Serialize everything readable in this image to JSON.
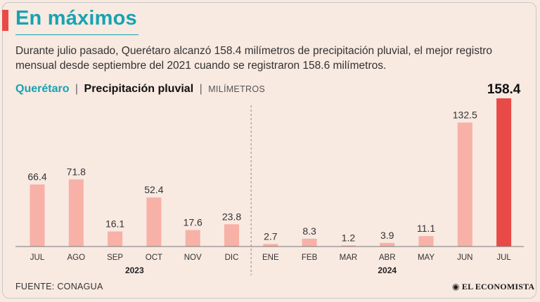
{
  "header": {
    "title": "En máximos",
    "description": "Durante julio pasado, Querétaro alcanzó 158.4 milímetros de precipitación pluvial, el mejor registro mensual desde septiembre del 2021 cuando se registraron 158.6 milímetros."
  },
  "legend": {
    "location": "Querétaro",
    "separator": "|",
    "metric": "Precipitación pluvial",
    "unit": "MILÍMETROS"
  },
  "footer": {
    "source": "FUENTE: CONAGUA",
    "logo": "EL ECONOMISTA"
  },
  "colors": {
    "bar": "#f7b1a7",
    "highlight": "#e84a47",
    "accent": "#16a3b3"
  },
  "chart_data": {
    "type": "bar",
    "title": "En máximos",
    "ylabel": "Precipitación pluvial (milímetros)",
    "xlabel": "",
    "ylim": [
      0,
      158.4
    ],
    "grid": false,
    "categories": [
      "JUL",
      "AGO",
      "SEP",
      "OCT",
      "NOV",
      "DIC",
      "ENE",
      "FEB",
      "MAR",
      "ABR",
      "MAY",
      "JUN",
      "JUL"
    ],
    "values": [
      66.4,
      71.8,
      16.1,
      52.4,
      17.6,
      23.8,
      2.7,
      8.3,
      1.2,
      3.9,
      11.1,
      132.5,
      158.4
    ],
    "labels": [
      "66.4",
      "71.8",
      "16.1",
      "52.4",
      "17.6",
      "23.8",
      "2.7",
      "8.3",
      "1.2",
      "3.9",
      "11.1",
      "132.5",
      "158.4"
    ],
    "highlight_index": 12,
    "year_groups": [
      {
        "label": "2023",
        "start": 0,
        "end": 5
      },
      {
        "label": "2024",
        "start": 6,
        "end": 12
      }
    ]
  }
}
